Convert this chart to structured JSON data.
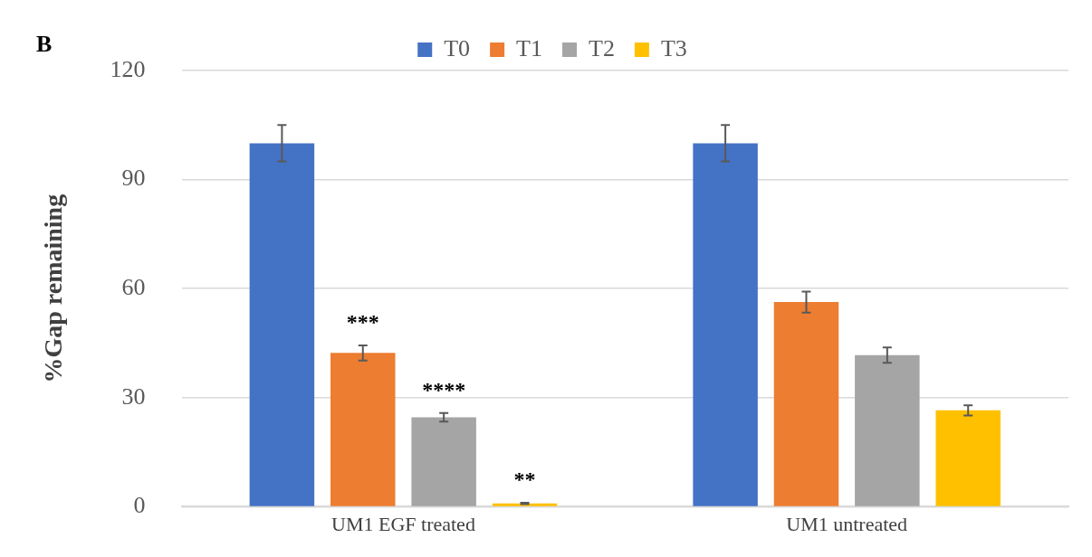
{
  "chart_data": {
    "type": "bar",
    "title": "B",
    "ylabel": "%Gap remaining",
    "categories": [
      "UM1 EGF treated",
      "UM1 untreated"
    ],
    "series": [
      {
        "name": "T0",
        "color": "#4472c4",
        "values": [
          100,
          100
        ],
        "errors": [
          5,
          5
        ]
      },
      {
        "name": "T1",
        "color": "#ed7d31",
        "values": [
          42.3,
          56.3
        ],
        "errors": [
          2.1,
          2.9
        ],
        "value_labels": [
          "***",
          null
        ]
      },
      {
        "name": "T2",
        "color": "#a5a5a5",
        "values": [
          24.6,
          41.7
        ],
        "errors": [
          1.2,
          2.1
        ],
        "value_labels": [
          "****",
          null
        ]
      },
      {
        "name": "T3",
        "color": "#ffc000",
        "values": [
          0.9,
          26.5
        ],
        "errors": [
          0.2,
          1.4
        ],
        "value_labels": [
          "**",
          null
        ]
      }
    ],
    "ylim": [
      0,
      120
    ],
    "yticks": [
      0,
      30,
      60,
      90,
      120
    ],
    "grid": "y",
    "legend": "top"
  }
}
